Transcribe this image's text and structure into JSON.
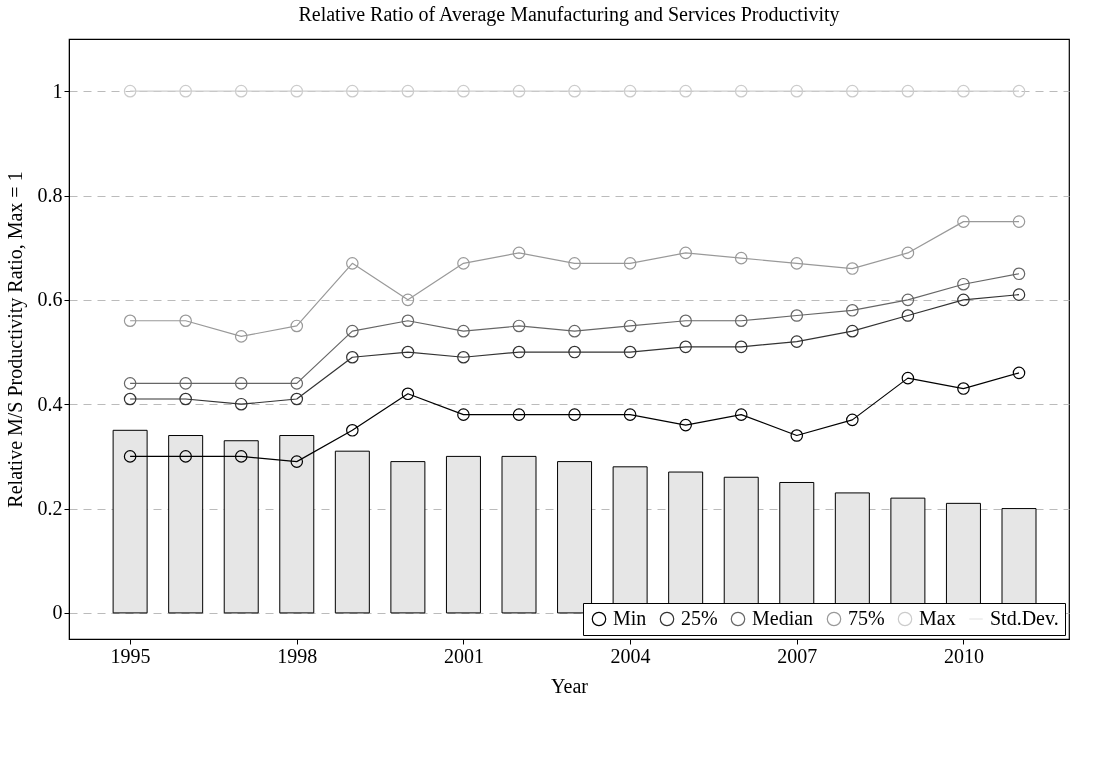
{
  "chart_data": {
    "type": "line",
    "title": "Relative Ratio of Average Manufacturing and Services Productivity",
    "xlabel": "Year",
    "ylabel": "Relative M/S Productivity Ratio, Max = 1",
    "x": [
      1995,
      1996,
      1997,
      1998,
      1999,
      2000,
      2001,
      2002,
      2003,
      2004,
      2005,
      2006,
      2007,
      2008,
      2009,
      2010,
      2011
    ],
    "series": [
      {
        "name": "Min",
        "color": "#000000",
        "values": [
          0.3,
          0.3,
          0.3,
          0.29,
          0.35,
          0.42,
          0.38,
          0.38,
          0.38,
          0.38,
          0.36,
          0.38,
          0.34,
          0.37,
          0.45,
          0.43,
          0.46
        ]
      },
      {
        "name": "25%",
        "color": "#333333",
        "values": [
          0.41,
          0.41,
          0.4,
          0.41,
          0.49,
          0.5,
          0.49,
          0.5,
          0.5,
          0.5,
          0.51,
          0.51,
          0.52,
          0.54,
          0.57,
          0.6,
          0.61
        ]
      },
      {
        "name": "Median",
        "color": "#666666",
        "values": [
          0.44,
          0.44,
          0.44,
          0.44,
          0.54,
          0.56,
          0.54,
          0.55,
          0.54,
          0.55,
          0.56,
          0.56,
          0.57,
          0.58,
          0.6,
          0.63,
          0.65
        ]
      },
      {
        "name": "75%",
        "color": "#999999",
        "values": [
          0.56,
          0.56,
          0.53,
          0.55,
          0.67,
          0.6,
          0.67,
          0.69,
          0.67,
          0.67,
          0.69,
          0.68,
          0.67,
          0.66,
          0.69,
          0.75,
          0.75
        ]
      },
      {
        "name": "Max",
        "color": "#cccccc",
        "values": [
          1,
          1,
          1,
          1,
          1,
          1,
          1,
          1,
          1,
          1,
          1,
          1,
          1,
          1,
          1,
          1,
          1
        ]
      },
      {
        "name": "Std.Dev.",
        "type": "bar",
        "color": "#e6e6e6",
        "values": [
          0.35,
          0.34,
          0.33,
          0.34,
          0.31,
          0.29,
          0.3,
          0.3,
          0.29,
          0.28,
          0.27,
          0.26,
          0.25,
          0.23,
          0.22,
          0.21,
          0.2
        ]
      }
    ],
    "xlim": [
      1993.9,
      2011.9
    ],
    "xticks": [
      1995,
      1998,
      2001,
      2004,
      2007,
      2010
    ],
    "ylim": [
      -0.05,
      1.1
    ],
    "yticks": [
      0,
      0.2,
      0.4,
      0.6,
      0.8,
      1
    ],
    "grid": "y",
    "legend": "bottom right",
    "marker": "circle"
  }
}
